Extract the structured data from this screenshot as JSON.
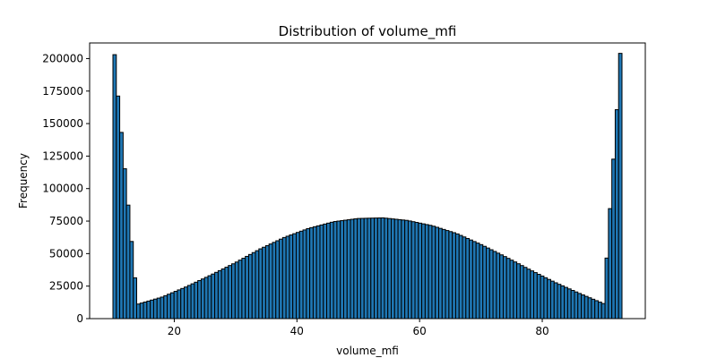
{
  "chart_data": {
    "type": "bar",
    "title": "Distribution of volume_mfi",
    "xlabel": "volume_mfi",
    "ylabel": "Frequency",
    "xlim": [
      6.2,
      96.8
    ],
    "ylim": [
      0,
      212000
    ],
    "xticks": [
      20,
      40,
      60,
      80
    ],
    "yticks": [
      0,
      25000,
      50000,
      75000,
      100000,
      125000,
      150000,
      175000,
      200000
    ],
    "bin_range": [
      10,
      93
    ],
    "num_bins": 150,
    "bin_centers": [
      10.2,
      14.0,
      18.0,
      22.0,
      26.0,
      30.0,
      34.0,
      38.0,
      42.0,
      46.0,
      50.0,
      54.0,
      58.0,
      62.0,
      66.0,
      70.0,
      74.0,
      78.0,
      82.0,
      86.0,
      90.0,
      92.8
    ],
    "values": [
      203000,
      11000,
      16500,
      24500,
      33500,
      43000,
      53500,
      62500,
      69500,
      74500,
      77000,
      77500,
      75500,
      71500,
      65500,
      57000,
      47500,
      37500,
      28000,
      19500,
      11500,
      204000
    ],
    "bar_color": "#1f77b4",
    "edge_color": "#000000",
    "grid": false
  }
}
